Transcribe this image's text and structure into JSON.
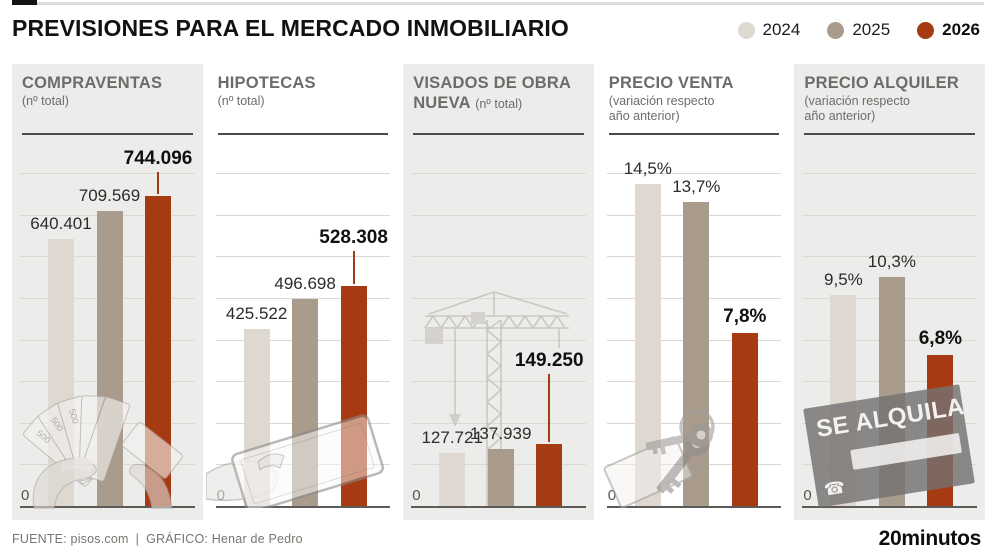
{
  "header": {
    "title": "PREVISIONES PARA EL MERCADO INMOBILIARIO",
    "legend": [
      {
        "label": "2024",
        "color": "#ded8d1"
      },
      {
        "label": "2025",
        "color": "#a99c8d"
      },
      {
        "label": "2026",
        "color": "#a63b13"
      }
    ]
  },
  "axis": {
    "zero_label": "0"
  },
  "chart_data": [
    {
      "type": "bar",
      "title": "COMPRAVENTAS",
      "subtitle": "(nº total)",
      "categories": [
        "2024",
        "2025",
        "2026"
      ],
      "values": [
        640401,
        709569,
        744096
      ],
      "value_labels": [
        "640.401",
        "709.569",
        "744.096"
      ],
      "ylim": [
        0,
        800000
      ],
      "grid": true,
      "unit": "",
      "decoration": "hands-counting-banknotes",
      "banknote_label": "500"
    },
    {
      "type": "bar",
      "title": "HIPOTECAS",
      "subtitle": "(nº total)",
      "categories": [
        "2024",
        "2025",
        "2026"
      ],
      "values": [
        425522,
        496698,
        528308
      ],
      "value_labels": [
        "425.522",
        "496.698",
        "528.308"
      ],
      "ylim": [
        0,
        800000
      ],
      "grid": true,
      "unit": "",
      "decoration": "hand-holding-tablet"
    },
    {
      "type": "bar",
      "title": "VISADOS DE OBRA NUEVA",
      "subtitle": "(nº total)",
      "categories": [
        "2024",
        "2025",
        "2026"
      ],
      "values": [
        127721,
        137939,
        149250
      ],
      "value_labels": [
        "127.721",
        "137.939",
        "149.250"
      ],
      "ylim": [
        0,
        800000
      ],
      "grid": true,
      "unit": "",
      "decoration": "construction-crane"
    },
    {
      "type": "bar",
      "title": "PRECIO VENTA",
      "subtitle": "(variación respecto año anterior)",
      "categories": [
        "2024",
        "2025",
        "2026"
      ],
      "values": [
        14.5,
        13.7,
        7.8
      ],
      "value_labels": [
        "14,5%",
        "13,7%",
        "7,8%"
      ],
      "ylim": [
        0,
        15
      ],
      "grid": true,
      "unit": "%",
      "decoration": "house-keys"
    },
    {
      "type": "bar",
      "title": "PRECIO ALQUILER",
      "subtitle": "(variación respecto año anterior)",
      "categories": [
        "2024",
        "2025",
        "2026"
      ],
      "values": [
        9.5,
        10.3,
        6.8
      ],
      "value_labels": [
        "9,5%",
        "10,3%",
        "6,8%"
      ],
      "ylim": [
        0,
        15
      ],
      "grid": true,
      "unit": "%",
      "decoration": "se-alquila-sign",
      "decoration_text": "SE ALQUILA"
    }
  ],
  "footer": {
    "source": "FUENTE: pisos.com",
    "separator": "|",
    "credit": "GRÁFICO: Henar de Pedro",
    "brand": "20minutos"
  }
}
